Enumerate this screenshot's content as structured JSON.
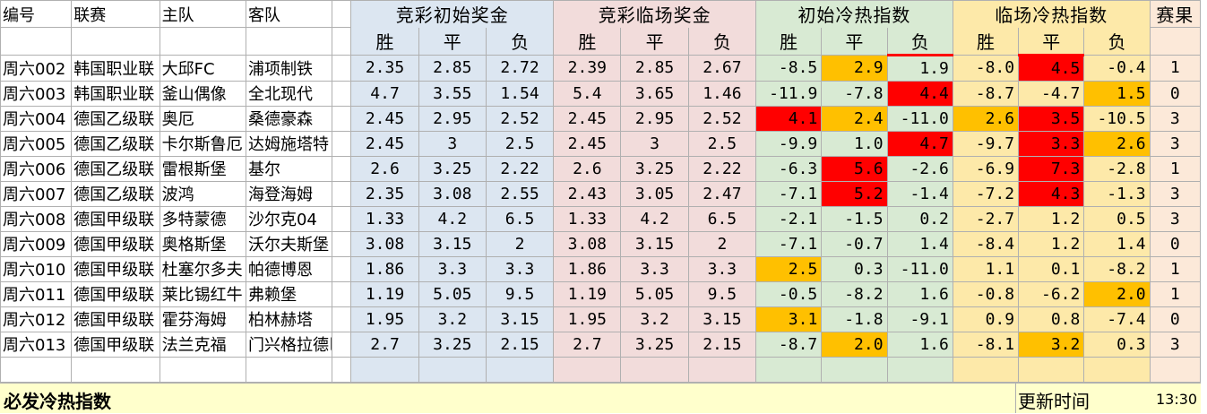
{
  "headers": {
    "id": "编号",
    "league": "联赛",
    "home": "主队",
    "away": "客队",
    "initial_odds": "竞彩初始奖金",
    "final_odds": "竞彩临场奖金",
    "initial_heat": "初始冷热指数",
    "final_heat": "临场冷热指数",
    "result": "赛果",
    "win": "胜",
    "draw": "平",
    "lose": "负"
  },
  "rows": [
    {
      "id": "周六002",
      "league": "韩国职业联",
      "home": "大邱FC",
      "away": "浦项制铁",
      "io": [
        "2.35",
        "2.85",
        "2.72"
      ],
      "fo": [
        "2.39",
        "2.85",
        "2.67"
      ],
      "ih": [
        "-8.5",
        "2.9",
        "1.9"
      ],
      "fh": [
        "-8.0",
        "4.5",
        "-0.4"
      ],
      "res": "1"
    },
    {
      "id": "周六003",
      "league": "韩国职业联",
      "home": "釜山偶像",
      "away": "全北现代",
      "io": [
        "4.7",
        "3.55",
        "1.54"
      ],
      "fo": [
        "5.4",
        "3.65",
        "1.46"
      ],
      "ih": [
        "-11.9",
        "-7.8",
        "4.4"
      ],
      "fh": [
        "-8.7",
        "-4.7",
        "1.5"
      ],
      "res": "0"
    },
    {
      "id": "周六004",
      "league": "德国乙级联",
      "home": "奥厄",
      "away": "桑德豪森",
      "io": [
        "2.45",
        "2.95",
        "2.52"
      ],
      "fo": [
        "2.45",
        "2.95",
        "2.52"
      ],
      "ih": [
        "4.1",
        "2.4",
        "-11.0"
      ],
      "fh": [
        "2.6",
        "3.5",
        "-10.5"
      ],
      "res": "3"
    },
    {
      "id": "周六005",
      "league": "德国乙级联",
      "home": "卡尔斯鲁厄",
      "away": "达姆施塔特",
      "io": [
        "2.45",
        "3",
        "2.5"
      ],
      "fo": [
        "2.45",
        "3",
        "2.5"
      ],
      "ih": [
        "-9.9",
        "1.0",
        "4.7"
      ],
      "fh": [
        "-9.7",
        "3.3",
        "2.6"
      ],
      "res": "3"
    },
    {
      "id": "周六006",
      "league": "德国乙级联",
      "home": "雷根斯堡",
      "away": "基尔",
      "io": [
        "2.6",
        "3.25",
        "2.22"
      ],
      "fo": [
        "2.6",
        "3.25",
        "2.22"
      ],
      "ih": [
        "-6.3",
        "5.6",
        "-2.6"
      ],
      "fh": [
        "-6.9",
        "7.3",
        "-2.8"
      ],
      "res": "1"
    },
    {
      "id": "周六007",
      "league": "德国乙级联",
      "home": "波鸿",
      "away": "海登海姆",
      "io": [
        "2.35",
        "3.08",
        "2.55"
      ],
      "fo": [
        "2.43",
        "3.05",
        "2.47"
      ],
      "ih": [
        "-7.1",
        "5.2",
        "-1.4"
      ],
      "fh": [
        "-7.2",
        "4.3",
        "-1.3"
      ],
      "res": "3"
    },
    {
      "id": "周六008",
      "league": "德国甲级联",
      "home": "多特蒙德",
      "away": "沙尔克04",
      "io": [
        "1.33",
        "4.2",
        "6.5"
      ],
      "fo": [
        "1.33",
        "4.2",
        "6.5"
      ],
      "ih": [
        "-2.1",
        "-1.5",
        "0.2"
      ],
      "fh": [
        "-2.7",
        "1.2",
        "0.5"
      ],
      "res": "3"
    },
    {
      "id": "周六009",
      "league": "德国甲级联",
      "home": "奥格斯堡",
      "away": "沃尔夫斯堡",
      "io": [
        "3.08",
        "3.15",
        "2"
      ],
      "fo": [
        "3.08",
        "3.15",
        "2"
      ],
      "ih": [
        "-7.1",
        "-0.7",
        "1.4"
      ],
      "fh": [
        "-8.4",
        "1.2",
        "1.4"
      ],
      "res": "0"
    },
    {
      "id": "周六010",
      "league": "德国甲级联",
      "home": "杜塞尔多夫",
      "away": "帕德博恩",
      "io": [
        "1.86",
        "3.3",
        "3.3"
      ],
      "fo": [
        "1.86",
        "3.3",
        "3.3"
      ],
      "ih": [
        "2.5",
        "0.3",
        "-11.0"
      ],
      "fh": [
        "1.1",
        "0.1",
        "-8.2"
      ],
      "res": "1"
    },
    {
      "id": "周六011",
      "league": "德国甲级联",
      "home": "莱比锡红牛",
      "away": "弗赖堡",
      "io": [
        "1.19",
        "5.05",
        "9.5"
      ],
      "fo": [
        "1.19",
        "5.05",
        "9.5"
      ],
      "ih": [
        "-0.5",
        "-8.2",
        "1.6"
      ],
      "fh": [
        "-0.8",
        "-6.2",
        "2.0"
      ],
      "res": "1"
    },
    {
      "id": "周六012",
      "league": "德国甲级联",
      "home": "霍芬海姆",
      "away": "柏林赫塔",
      "io": [
        "1.95",
        "3.2",
        "3.15"
      ],
      "fo": [
        "1.95",
        "3.2",
        "3.15"
      ],
      "ih": [
        "3.1",
        "-1.8",
        "-9.1"
      ],
      "fh": [
        "0.9",
        "0.8",
        "-7.4"
      ],
      "res": "0"
    },
    {
      "id": "周六013",
      "league": "德国甲级联",
      "home": "法兰克福",
      "away": "门兴格拉德巴",
      "io": [
        "2.7",
        "3.25",
        "2.15"
      ],
      "fo": [
        "2.7",
        "3.25",
        "2.15"
      ],
      "ih": [
        "-8.7",
        "2.0",
        "1.6"
      ],
      "fh": [
        "-8.1",
        "3.2",
        "0.3"
      ],
      "res": "3"
    }
  ],
  "highlights": {
    "red": "#ff0000",
    "orange": "#ffc000",
    "cells": [
      [
        0,
        "ih",
        1,
        "orange"
      ],
      [
        0,
        "fh",
        1,
        "red"
      ],
      [
        1,
        "ih",
        2,
        "red"
      ],
      [
        1,
        "fh",
        2,
        "orange"
      ],
      [
        2,
        "ih",
        0,
        "red"
      ],
      [
        2,
        "ih",
        1,
        "orange"
      ],
      [
        2,
        "fh",
        0,
        "orange"
      ],
      [
        2,
        "fh",
        1,
        "red"
      ],
      [
        3,
        "ih",
        2,
        "red"
      ],
      [
        3,
        "fh",
        1,
        "red"
      ],
      [
        3,
        "fh",
        2,
        "orange"
      ],
      [
        4,
        "ih",
        1,
        "red"
      ],
      [
        4,
        "fh",
        1,
        "red"
      ],
      [
        5,
        "ih",
        1,
        "red"
      ],
      [
        5,
        "fh",
        1,
        "red"
      ],
      [
        8,
        "ih",
        0,
        "orange"
      ],
      [
        9,
        "fh",
        2,
        "orange"
      ],
      [
        10,
        "ih",
        0,
        "orange"
      ],
      [
        11,
        "ih",
        1,
        "orange"
      ],
      [
        11,
        "fh",
        1,
        "orange"
      ]
    ]
  },
  "footer": {
    "title": "必发冷热指数",
    "update_label": "更新时间",
    "update_time": "13:30"
  }
}
